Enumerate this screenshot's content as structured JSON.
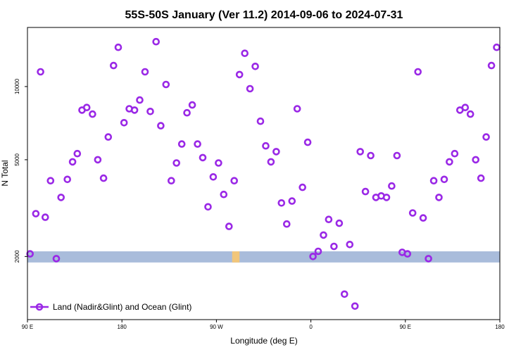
{
  "chart_data": {
    "type": "scatter",
    "title": "55S-50S January (Ver 11.2)   2014-09-06 to 2024-07-31",
    "xlabel": "Longitude (deg E)",
    "ylabel": "N Total",
    "x_ticks": [
      {
        "value": 90,
        "label": "90 E"
      },
      {
        "value": 180,
        "label": "180"
      },
      {
        "value": 270,
        "label": "90 W"
      },
      {
        "value": 360,
        "label": "0"
      },
      {
        "value": 450,
        "label": "90 E"
      },
      {
        "value": 540,
        "label": "180"
      }
    ],
    "y_ticks": [
      {
        "value": 2000,
        "label": "2000"
      },
      {
        "value": 5000,
        "label": "5000"
      },
      {
        "value": 10000,
        "label": "10000"
      }
    ],
    "xlim": [
      90,
      540
    ],
    "ylim": [
      1100,
      17500
    ],
    "y_scale": "log",
    "band": {
      "y_low": 1890,
      "y_high": 2100,
      "color": "#a9bcdb"
    },
    "band_highlight": {
      "x_low": 285,
      "x_high": 292,
      "color": "#f2c67a"
    },
    "series": [
      {
        "name": "Land (Nadir&Glint) and Ocean (Glint)",
        "color": "#9a28e6",
        "x": [
          92.5,
          98,
          102.5,
          107,
          112,
          117.5,
          122,
          128,
          133,
          137.5,
          142,
          146.5,
          152,
          157,
          162.5,
          167,
          172,
          176.5,
          182,
          187,
          192,
          197,
          202,
          207,
          212.5,
          217,
          222,
          227,
          232,
          237,
          242,
          247,
          252,
          257,
          262,
          267,
          272,
          277,
          282,
          287,
          292,
          297,
          302,
          307,
          312,
          317,
          322,
          327,
          332,
          337,
          342,
          347,
          352,
          357,
          362,
          367,
          372,
          377,
          382,
          387,
          392,
          397,
          402,
          407,
          412,
          417,
          422,
          427,
          432,
          437,
          442,
          447,
          452,
          457,
          462,
          467,
          472,
          477,
          482,
          487,
          492,
          497,
          502,
          507,
          512,
          517,
          522,
          527,
          532,
          537
        ],
        "y": [
          2050,
          3000,
          11500,
          2900,
          4100,
          1960,
          3500,
          4150,
          4900,
          5300,
          8000,
          8200,
          7700,
          5000,
          4200,
          6200,
          12200,
          14500,
          7100,
          8100,
          8000,
          8800,
          11500,
          7900,
          15300,
          6900,
          10200,
          4100,
          4850,
          5800,
          7800,
          8400,
          5800,
          5100,
          3200,
          4250,
          4850,
          3600,
          2660,
          4100,
          11200,
          13700,
          9800,
          12100,
          7200,
          5700,
          4900,
          5400,
          3320,
          2720,
          3380,
          8100,
          3850,
          5900,
          2000,
          2100,
          2450,
          2840,
          2200,
          2740,
          1400,
          2240,
          1250,
          5400,
          3700,
          5200,
          3500,
          3550,
          3500,
          3900,
          5200,
          2080,
          2050,
          3020,
          11500,
          2880,
          1960,
          4100,
          3500,
          4150,
          4900,
          5300,
          8000,
          8200,
          7700,
          5000,
          4200,
          6200,
          12200,
          14500
        ]
      }
    ],
    "legend": {
      "position": "bottom-left",
      "entries": [
        "Land (Nadir&Glint) and Ocean (Glint)"
      ]
    },
    "grid": false
  }
}
